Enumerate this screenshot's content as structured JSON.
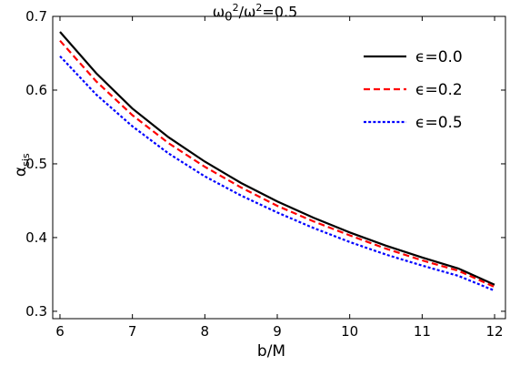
{
  "chart_data": {
    "type": "line",
    "title_prefix": "ω",
    "title_sub": "0",
    "title_sup": "2",
    "title_mid": "/ω",
    "title_sup2": "2",
    "title_suffix": "=0.5",
    "xlabel": "b/M",
    "ylabel_main": "α",
    "ylabel_sub": "sis",
    "xlim": [
      5.9,
      12.15
    ],
    "ylim": [
      0.29,
      0.7
    ],
    "xticks": [
      6,
      7,
      8,
      9,
      10,
      11,
      12
    ],
    "yticks": [
      0.3,
      0.4,
      0.5,
      0.6,
      0.7
    ],
    "grid": false,
    "legend_position": "top-right",
    "series": [
      {
        "name": "ϵ=0.0",
        "color": "#000000",
        "dash": "solid",
        "x": [
          6,
          6.5,
          7,
          7.5,
          8,
          8.5,
          9,
          9.5,
          10,
          10.5,
          11,
          11.5,
          12
        ],
        "y": [
          0.679,
          0.623,
          0.575,
          0.536,
          0.503,
          0.474,
          0.449,
          0.427,
          0.407,
          0.389,
          0.373,
          0.358,
          0.336
        ]
      },
      {
        "name": "ϵ=0.2",
        "color": "#ff0000",
        "dash": "dashed",
        "x": [
          6,
          6.5,
          7,
          7.5,
          8,
          8.5,
          9,
          9.5,
          10,
          10.5,
          11,
          11.5,
          12
        ],
        "y": [
          0.667,
          0.612,
          0.566,
          0.528,
          0.496,
          0.468,
          0.443,
          0.422,
          0.403,
          0.385,
          0.369,
          0.355,
          0.333
        ]
      },
      {
        "name": "ϵ=0.5",
        "color": "#0000ff",
        "dash": "dotted",
        "x": [
          6,
          6.5,
          7,
          7.5,
          8,
          8.5,
          9,
          9.5,
          10,
          10.5,
          11,
          11.5,
          12
        ],
        "y": [
          0.646,
          0.594,
          0.551,
          0.514,
          0.483,
          0.457,
          0.434,
          0.413,
          0.394,
          0.377,
          0.362,
          0.348,
          0.328
        ]
      }
    ]
  }
}
